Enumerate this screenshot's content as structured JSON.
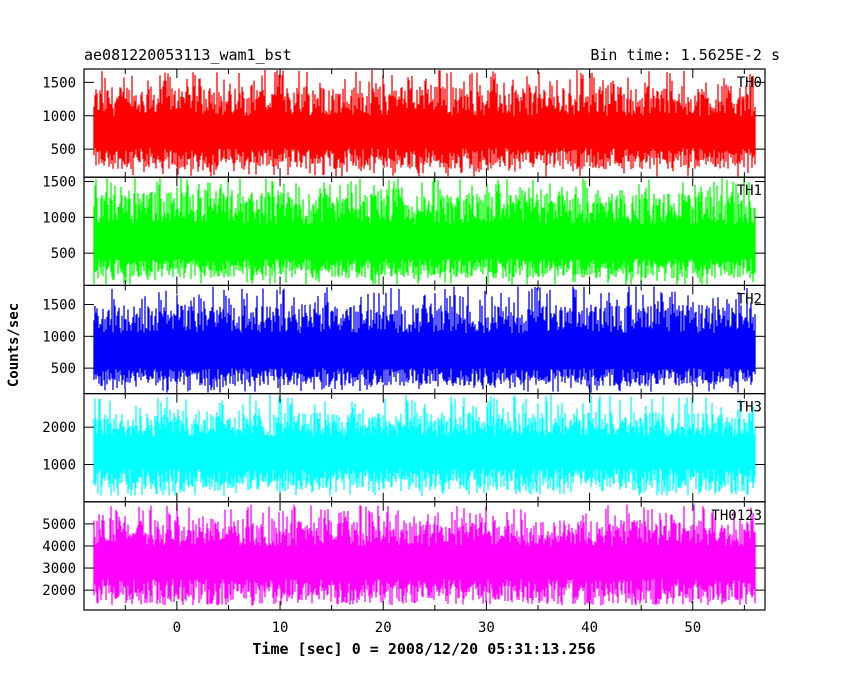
{
  "chart_data": {
    "type": "line",
    "title": "ae081220053113_wam1_bst",
    "subtitle": "Bin time: 1.5625E-2 s",
    "xlabel": "Time [sec] 0 = 2008/12/20 05:31:13.256",
    "ylabel": "Counts/sec",
    "xlim": [
      -9,
      57
    ],
    "xticks": [
      0,
      10,
      20,
      30,
      40,
      50
    ],
    "x_range": [
      -8,
      56
    ],
    "grid": false,
    "panels": [
      {
        "name": "TH0",
        "color": "#ff0000",
        "ylim": [
          80,
          1700
        ],
        "yticks": [
          500,
          1000,
          1500
        ],
        "band_low": [
          200,
          520
        ],
        "band_high": [
          1000,
          1450
        ],
        "spike_max": 1700,
        "dip_min": 80
      },
      {
        "name": "TH1",
        "color": "#00ff00",
        "ylim": [
          50,
          1560
        ],
        "yticks": [
          500,
          1000,
          1500
        ],
        "band_low": [
          150,
          420
        ],
        "band_high": [
          900,
          1350
        ],
        "spike_max": 1560,
        "dip_min": 40
      },
      {
        "name": "TH2",
        "color": "#0000ff",
        "ylim": [
          100,
          1800
        ],
        "yticks": [
          500,
          1000,
          1500
        ],
        "band_low": [
          220,
          500
        ],
        "band_high": [
          1050,
          1500
        ],
        "spike_max": 1800,
        "dip_min": 100
      },
      {
        "name": "TH3",
        "color": "#00ffff",
        "ylim": [
          0,
          2900
        ],
        "yticks": [
          1000,
          2000
        ],
        "band_low": [
          280,
          900
        ],
        "band_high": [
          1750,
          2400
        ],
        "spike_max": 2900,
        "dip_min": 150
      },
      {
        "name": "TH0123",
        "color": "#ff00ff",
        "ylim": [
          1100,
          6000
        ],
        "yticks": [
          2000,
          3000,
          4000,
          5000
        ],
        "band_low": [
          1400,
          2500
        ],
        "band_high": [
          4000,
          5200
        ],
        "spike_max": 5900,
        "dip_min": 1300
      }
    ]
  }
}
